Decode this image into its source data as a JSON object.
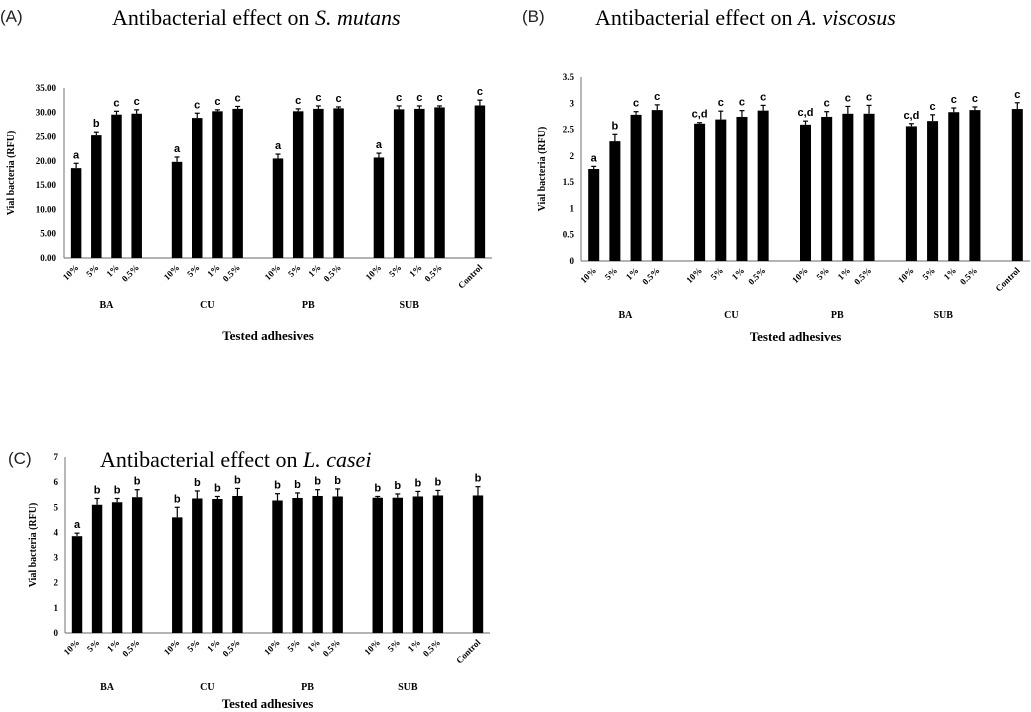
{
  "chart_data": [
    {
      "type": "bar",
      "panel": "(A)",
      "title_prefix": "Antibacterial effect on ",
      "title_species": "S. mutans",
      "xlabel": "Tested adhesives",
      "ylabel": "Vial bacteria (RFU)",
      "ylim": [
        0,
        35
      ],
      "yticks": [
        "0.00",
        "5.00",
        "10.00",
        "15.00",
        "20.00",
        "25.00",
        "30.00",
        "35.00"
      ],
      "groups": [
        "BA",
        "CU",
        "PB",
        "SUB"
      ],
      "categories": [
        "10%",
        "5%",
        "1%",
        "0.5%",
        "10%",
        "5%",
        "1%",
        "0.5%",
        "10%",
        "5%",
        "1%",
        "0.5%",
        "10%",
        "5%",
        "1%",
        "0.5%",
        "Control"
      ],
      "values": [
        18.5,
        25.3,
        29.5,
        29.7,
        19.8,
        28.8,
        30.2,
        30.7,
        20.5,
        30.2,
        30.7,
        30.8,
        20.7,
        30.6,
        30.7,
        31.0,
        31.4
      ],
      "errors": [
        1.0,
        0.6,
        0.7,
        0.8,
        1.0,
        1.0,
        0.3,
        0.5,
        0.9,
        0.5,
        0.6,
        0.3,
        0.9,
        0.7,
        0.6,
        0.3,
        1.1
      ],
      "letters": [
        "a",
        "b",
        "c",
        "c",
        "a",
        "c",
        "c",
        "c",
        "a",
        "c",
        "c",
        "c",
        "a",
        "c",
        "c",
        "c",
        "c"
      ]
    },
    {
      "type": "bar",
      "panel": "(B)",
      "title_prefix": "Antibacterial effect on ",
      "title_species": "A. viscosus",
      "xlabel": "Tested adhesives",
      "ylabel": "Vial bacteria (RFU)",
      "ylim": [
        0,
        3.5
      ],
      "yticks": [
        "0",
        "0.5",
        "1",
        "1.5",
        "2",
        "2.5",
        "3",
        "3.5"
      ],
      "groups": [
        "BA",
        "CU",
        "PB",
        "SUB"
      ],
      "categories": [
        "10%",
        "5%",
        "1%",
        "0.5%",
        "10%",
        "5%",
        "1%",
        "0.5%",
        "10%",
        "5%",
        "1%",
        "0.5%",
        "10%",
        "5%",
        "1%",
        "0.5%",
        "Control"
      ],
      "values": [
        1.75,
        2.28,
        2.78,
        2.87,
        2.61,
        2.69,
        2.74,
        2.86,
        2.59,
        2.74,
        2.8,
        2.8,
        2.56,
        2.66,
        2.83,
        2.87,
        2.89
      ],
      "errors": [
        0.05,
        0.13,
        0.06,
        0.1,
        0.02,
        0.16,
        0.12,
        0.1,
        0.07,
        0.1,
        0.14,
        0.16,
        0.05,
        0.12,
        0.08,
        0.06,
        0.12
      ],
      "letters": [
        "a",
        "b",
        "c",
        "c",
        "c,d",
        "c",
        "c",
        "c",
        "c,d",
        "c",
        "c",
        "c",
        "c,d",
        "c",
        "c",
        "c",
        "c"
      ]
    },
    {
      "type": "bar",
      "panel": "(C)",
      "title_prefix": "Antibacterial effect on ",
      "title_species": "L. casei",
      "xlabel": "Tested adhesives",
      "ylabel": "Vial bacteria (RFU)",
      "ylim": [
        0,
        7
      ],
      "yticks": [
        "0",
        "1",
        "2",
        "3",
        "4",
        "5",
        "6",
        "7"
      ],
      "groups": [
        "BA",
        "CU",
        "PB",
        "SUB"
      ],
      "categories": [
        "10%",
        "5%",
        "1%",
        "0.5%",
        "10%",
        "5%",
        "1%",
        "0.5%",
        "10%",
        "5%",
        "1%",
        "0.5%",
        "10%",
        "5%",
        "1%",
        "0.5%",
        "Control"
      ],
      "values": [
        3.85,
        5.1,
        5.2,
        5.4,
        4.6,
        5.35,
        5.33,
        5.45,
        5.27,
        5.37,
        5.45,
        5.43,
        5.38,
        5.38,
        5.43,
        5.47,
        5.47
      ],
      "errors": [
        0.12,
        0.25,
        0.15,
        0.3,
        0.4,
        0.3,
        0.1,
        0.3,
        0.27,
        0.2,
        0.25,
        0.3,
        0.05,
        0.15,
        0.2,
        0.2,
        0.35
      ],
      "letters": [
        "a",
        "b",
        "b",
        "b",
        "b",
        "b",
        "b",
        "b",
        "b",
        "b",
        "b",
        "b",
        "b",
        "b",
        "b",
        "b",
        "b"
      ]
    }
  ]
}
